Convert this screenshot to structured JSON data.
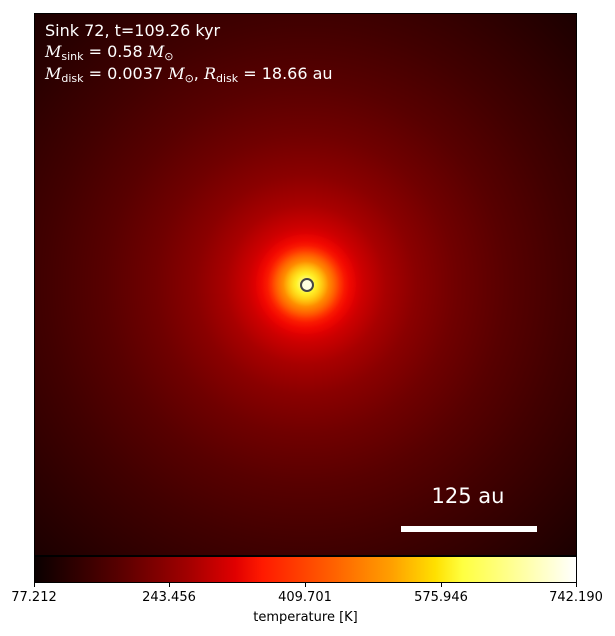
{
  "header": {
    "sink_prefix": "Sink 72, t=109.26 kyr",
    "m_sink_symbol": "M",
    "m_sink_sub": "sink",
    "m_sink_value": " = 0.58 ",
    "m_sun_symbol": "M",
    "m_sun_sub": "⊙",
    "m_disk_symbol": "M",
    "m_disk_sub": "disk",
    "m_disk_value": " = 0.0037 ",
    "r_disk_symbol": "R",
    "r_disk_sub": "disk",
    "r_disk_value": " = 18.66 au",
    "separator": ", "
  },
  "scale_bar": {
    "label": "125 au"
  },
  "colorbar": {
    "label": "temperature [K]",
    "colormap": "hot",
    "ticks": [
      "77.212",
      "243.456",
      "409.701",
      "575.946",
      "742.190"
    ]
  }
}
